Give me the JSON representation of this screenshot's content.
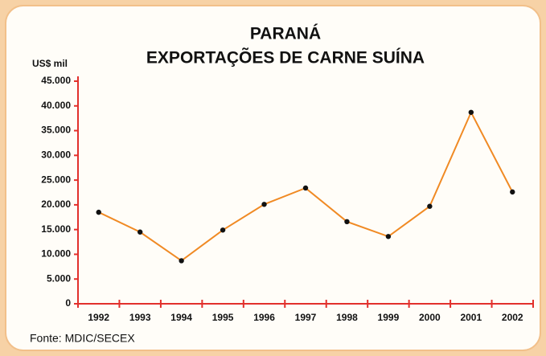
{
  "chart_data": {
    "type": "line",
    "title": "PARANÁ",
    "subtitle": "EXPORTAÇÕES DE CARNE SUÍNA",
    "y_label": "US$ mil",
    "source": "Fonte: MDIC/SECEX",
    "categories": [
      "1992",
      "1993",
      "1994",
      "1995",
      "1996",
      "1997",
      "1998",
      "1999",
      "2000",
      "2001",
      "2002"
    ],
    "series": [
      {
        "name": "Exportações",
        "color": "#f08a24",
        "values": [
          18500,
          14500,
          8700,
          14900,
          20100,
          23400,
          16600,
          13600,
          19700,
          38700,
          22600
        ]
      }
    ],
    "ylim": [
      0,
      45000
    ],
    "yticks": [
      0,
      {
        "value": 5000,
        "label": "5.000"
      },
      {
        "value": 10000,
        "label": "10.000"
      },
      {
        "value": 15000,
        "label": "15.000"
      },
      {
        "value": 20000,
        "label": "20.000"
      },
      {
        "value": 25000,
        "label": "25.000"
      },
      {
        "value": 30000,
        "label": "30.000"
      },
      {
        "value": 35000,
        "label": "35.000"
      },
      {
        "value": 40000,
        "label": "40.000"
      },
      {
        "value": 45000,
        "label": "45.000"
      }
    ],
    "axis_color": "#e2302c",
    "marker_color": "#111111"
  }
}
